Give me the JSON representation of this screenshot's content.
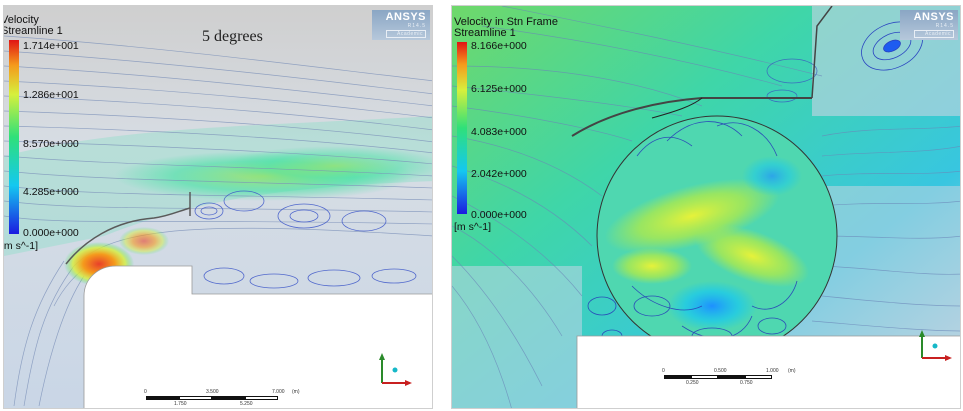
{
  "left_panel": {
    "legend": {
      "title_line1": "Velocity",
      "title_line2": "Streamline 1",
      "ticks": [
        "1.714e+001",
        "1.286e+001",
        "8.570e+000",
        "4.285e+000",
        "0.000e+000"
      ],
      "unit": "[m s^-1]"
    },
    "annotation": "5 degrees",
    "logo": {
      "name": "ANSYS",
      "version": "R14.5",
      "edition": "Academic"
    },
    "scale": {
      "labels_top": [
        "0",
        "3.500",
        "7.000"
      ],
      "unit": "(m)",
      "labels_bottom": [
        "1.750",
        "5.250"
      ]
    }
  },
  "right_panel": {
    "legend": {
      "title_line1": "Velocity in Stn Frame",
      "title_line2": "Streamline 1",
      "ticks": [
        "8.166e+000",
        "6.125e+000",
        "4.083e+000",
        "2.042e+000",
        "0.000e+000"
      ],
      "unit": "[m s^-1]"
    },
    "logo": {
      "name": "ANSYS",
      "version": "R14.5",
      "edition": "Academic"
    },
    "scale": {
      "labels_top": [
        "0",
        "0.500",
        "1.000"
      ],
      "unit": "(m)",
      "labels_bottom": [
        "0.250",
        "0.750"
      ]
    }
  },
  "colors": {
    "background_flow": "#d9d9d9",
    "solid": "#ffffff",
    "colormap": [
      "#1b1be0",
      "#14c8f0",
      "#2fe07a",
      "#d6f03c",
      "#f59a1c",
      "#e01414"
    ]
  }
}
